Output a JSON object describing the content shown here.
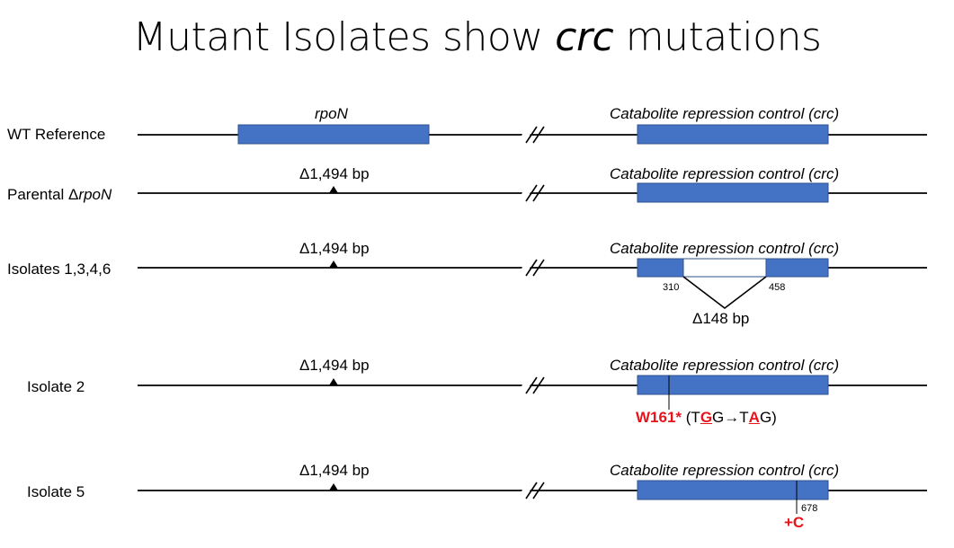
{
  "title": {
    "main": "Mutant Isolates show ",
    "italic": "crc",
    "tail": " mutations"
  },
  "colors": {
    "gene_fill": "#4472c4",
    "gene_stroke": "#2f528f",
    "mutation_text": "#e8141c"
  },
  "rows": [
    {
      "label": "WT Reference",
      "left_gene": "rpoN",
      "right_gene": "Catabolite repression control (crc)"
    },
    {
      "label_plain": "Parental Δ",
      "label_italic": "rpoN",
      "left_marker": "Δ1,494 bp",
      "right_gene": "Catabolite repression control (crc)"
    },
    {
      "label": "Isolates 1,3,4,6",
      "left_marker": "Δ1,494 bp",
      "right_gene": "Catabolite repression control (crc)",
      "deletion_start": "310",
      "deletion_end": "458",
      "deletion_size": "Δ148 bp"
    },
    {
      "label": "Isolate 2",
      "left_marker": "Δ1,494 bp",
      "right_gene": "Catabolite repression control (crc)",
      "mutation_name": "W161*",
      "codon_open": " (T",
      "codon_g1": "G",
      "codon_mid": "G→T",
      "codon_a": "A",
      "codon_close": "G)"
    },
    {
      "label": "Isolate 5",
      "left_marker": "Δ1,494 bp",
      "right_gene": "Catabolite repression control (crc)",
      "position": "678",
      "insertion": "+C"
    }
  ]
}
